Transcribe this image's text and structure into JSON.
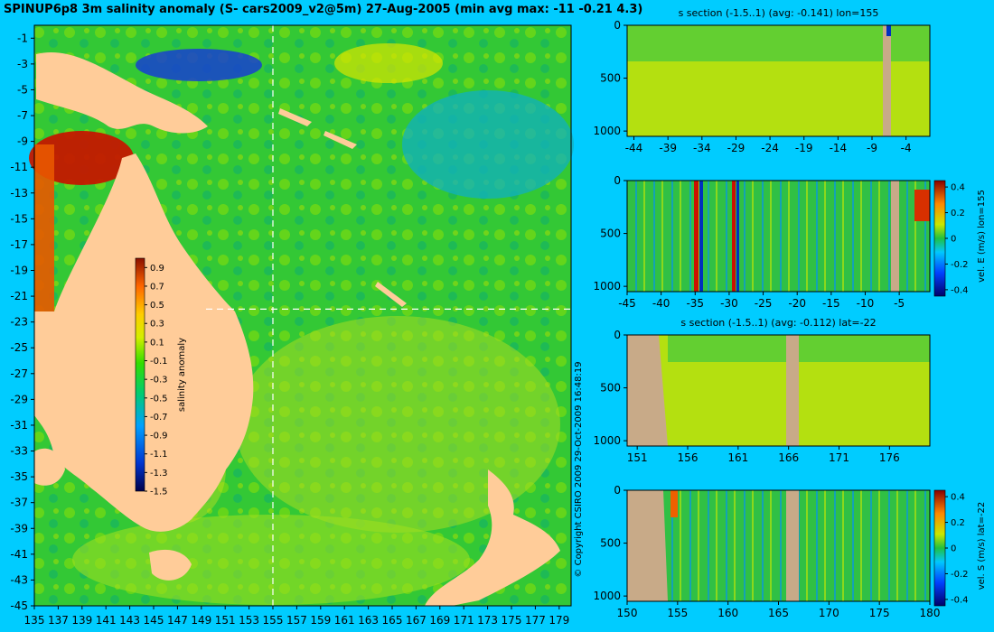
{
  "title": "SPINUP6p8 3m salinity anomaly (S- cars2009_v2@5m) 27-Aug-2005 (min avg max: -11 -0.21 4.3)",
  "copyright": "© Copyright CSIRO 2009   29-Oct-2009 16:48:19",
  "colors": {
    "background": "#00ccff",
    "land": "#ffcc99",
    "section_land": "#c8aa88"
  },
  "chart_data": [
    {
      "type": "heatmap",
      "name": "map",
      "x_ticks": [
        "135",
        "137",
        "139",
        "141",
        "143",
        "145",
        "147",
        "149",
        "151",
        "153",
        "155",
        "157",
        "159",
        "161",
        "163",
        "165",
        "167",
        "169",
        "171",
        "173",
        "175",
        "177",
        "179"
      ],
      "y_ticks": [
        "-1",
        "-3",
        "-5",
        "-7",
        "-9",
        "-11",
        "-13",
        "-15",
        "-17",
        "-19",
        "-21",
        "-23",
        "-25",
        "-27",
        "-29",
        "-31",
        "-33",
        "-35",
        "-37",
        "-39",
        "-41",
        "-43",
        "-45"
      ],
      "xlim": [
        135,
        180
      ],
      "ylim": [
        -45,
        0
      ],
      "section_lon": 155,
      "section_lat": -22,
      "colorbar": {
        "label": "salinity anomaly",
        "ticks": [
          "0.9",
          "0.7",
          "0.5",
          "0.3",
          "0.1",
          "-0.1",
          "-0.3",
          "-0.5",
          "-0.7",
          "-0.9",
          "-1.1",
          "-1.3",
          "-1.5"
        ],
        "range": [
          -1.5,
          1.0
        ]
      }
    },
    {
      "type": "heatmap",
      "name": "s_section_lon",
      "title": "s section (-1.5..1) (avg: -0.141) lon=155",
      "x_ticks": [
        "-44",
        "-39",
        "-34",
        "-29",
        "-24",
        "-19",
        "-14",
        "-9",
        "-4"
      ],
      "y_ticks": [
        "0",
        "500",
        "1000"
      ],
      "xlim": [
        -45,
        -0.5
      ],
      "ylim": [
        1050,
        0
      ]
    },
    {
      "type": "heatmap",
      "name": "vel_e_section",
      "x_ticks": [
        "-45",
        "-40",
        "-35",
        "-30",
        "-25",
        "-20",
        "-15",
        "-10",
        "-5"
      ],
      "y_ticks": [
        "0",
        "500",
        "1000"
      ],
      "xlim": [
        -45,
        -0.5
      ],
      "ylim": [
        1050,
        0
      ],
      "colorbar": {
        "label": "vel. E (m/s) lon=155",
        "ticks": [
          "0.4",
          "0.2",
          "0",
          "-0.2",
          "-0.4"
        ],
        "range": [
          -0.45,
          0.45
        ]
      }
    },
    {
      "type": "heatmap",
      "name": "s_section_lat",
      "title": "s section (-1.5..1) (avg: -0.112) lat=-22",
      "x_ticks": [
        "151",
        "156",
        "161",
        "166",
        "171",
        "176"
      ],
      "y_ticks": [
        "0",
        "500",
        "1000"
      ],
      "xlim": [
        150,
        180
      ],
      "ylim": [
        1050,
        0
      ]
    },
    {
      "type": "heatmap",
      "name": "vel_s_section",
      "x_ticks": [
        "150",
        "155",
        "160",
        "165",
        "170",
        "175",
        "180"
      ],
      "y_ticks": [
        "0",
        "500",
        "1000"
      ],
      "xlim": [
        150,
        180
      ],
      "ylim": [
        1050,
        0
      ],
      "colorbar": {
        "label": "vel. S (m/s) lat=-22",
        "ticks": [
          "0.4",
          "0.2",
          "0",
          "-0.2",
          "-0.4"
        ],
        "range": [
          -0.45,
          0.45
        ]
      }
    }
  ]
}
